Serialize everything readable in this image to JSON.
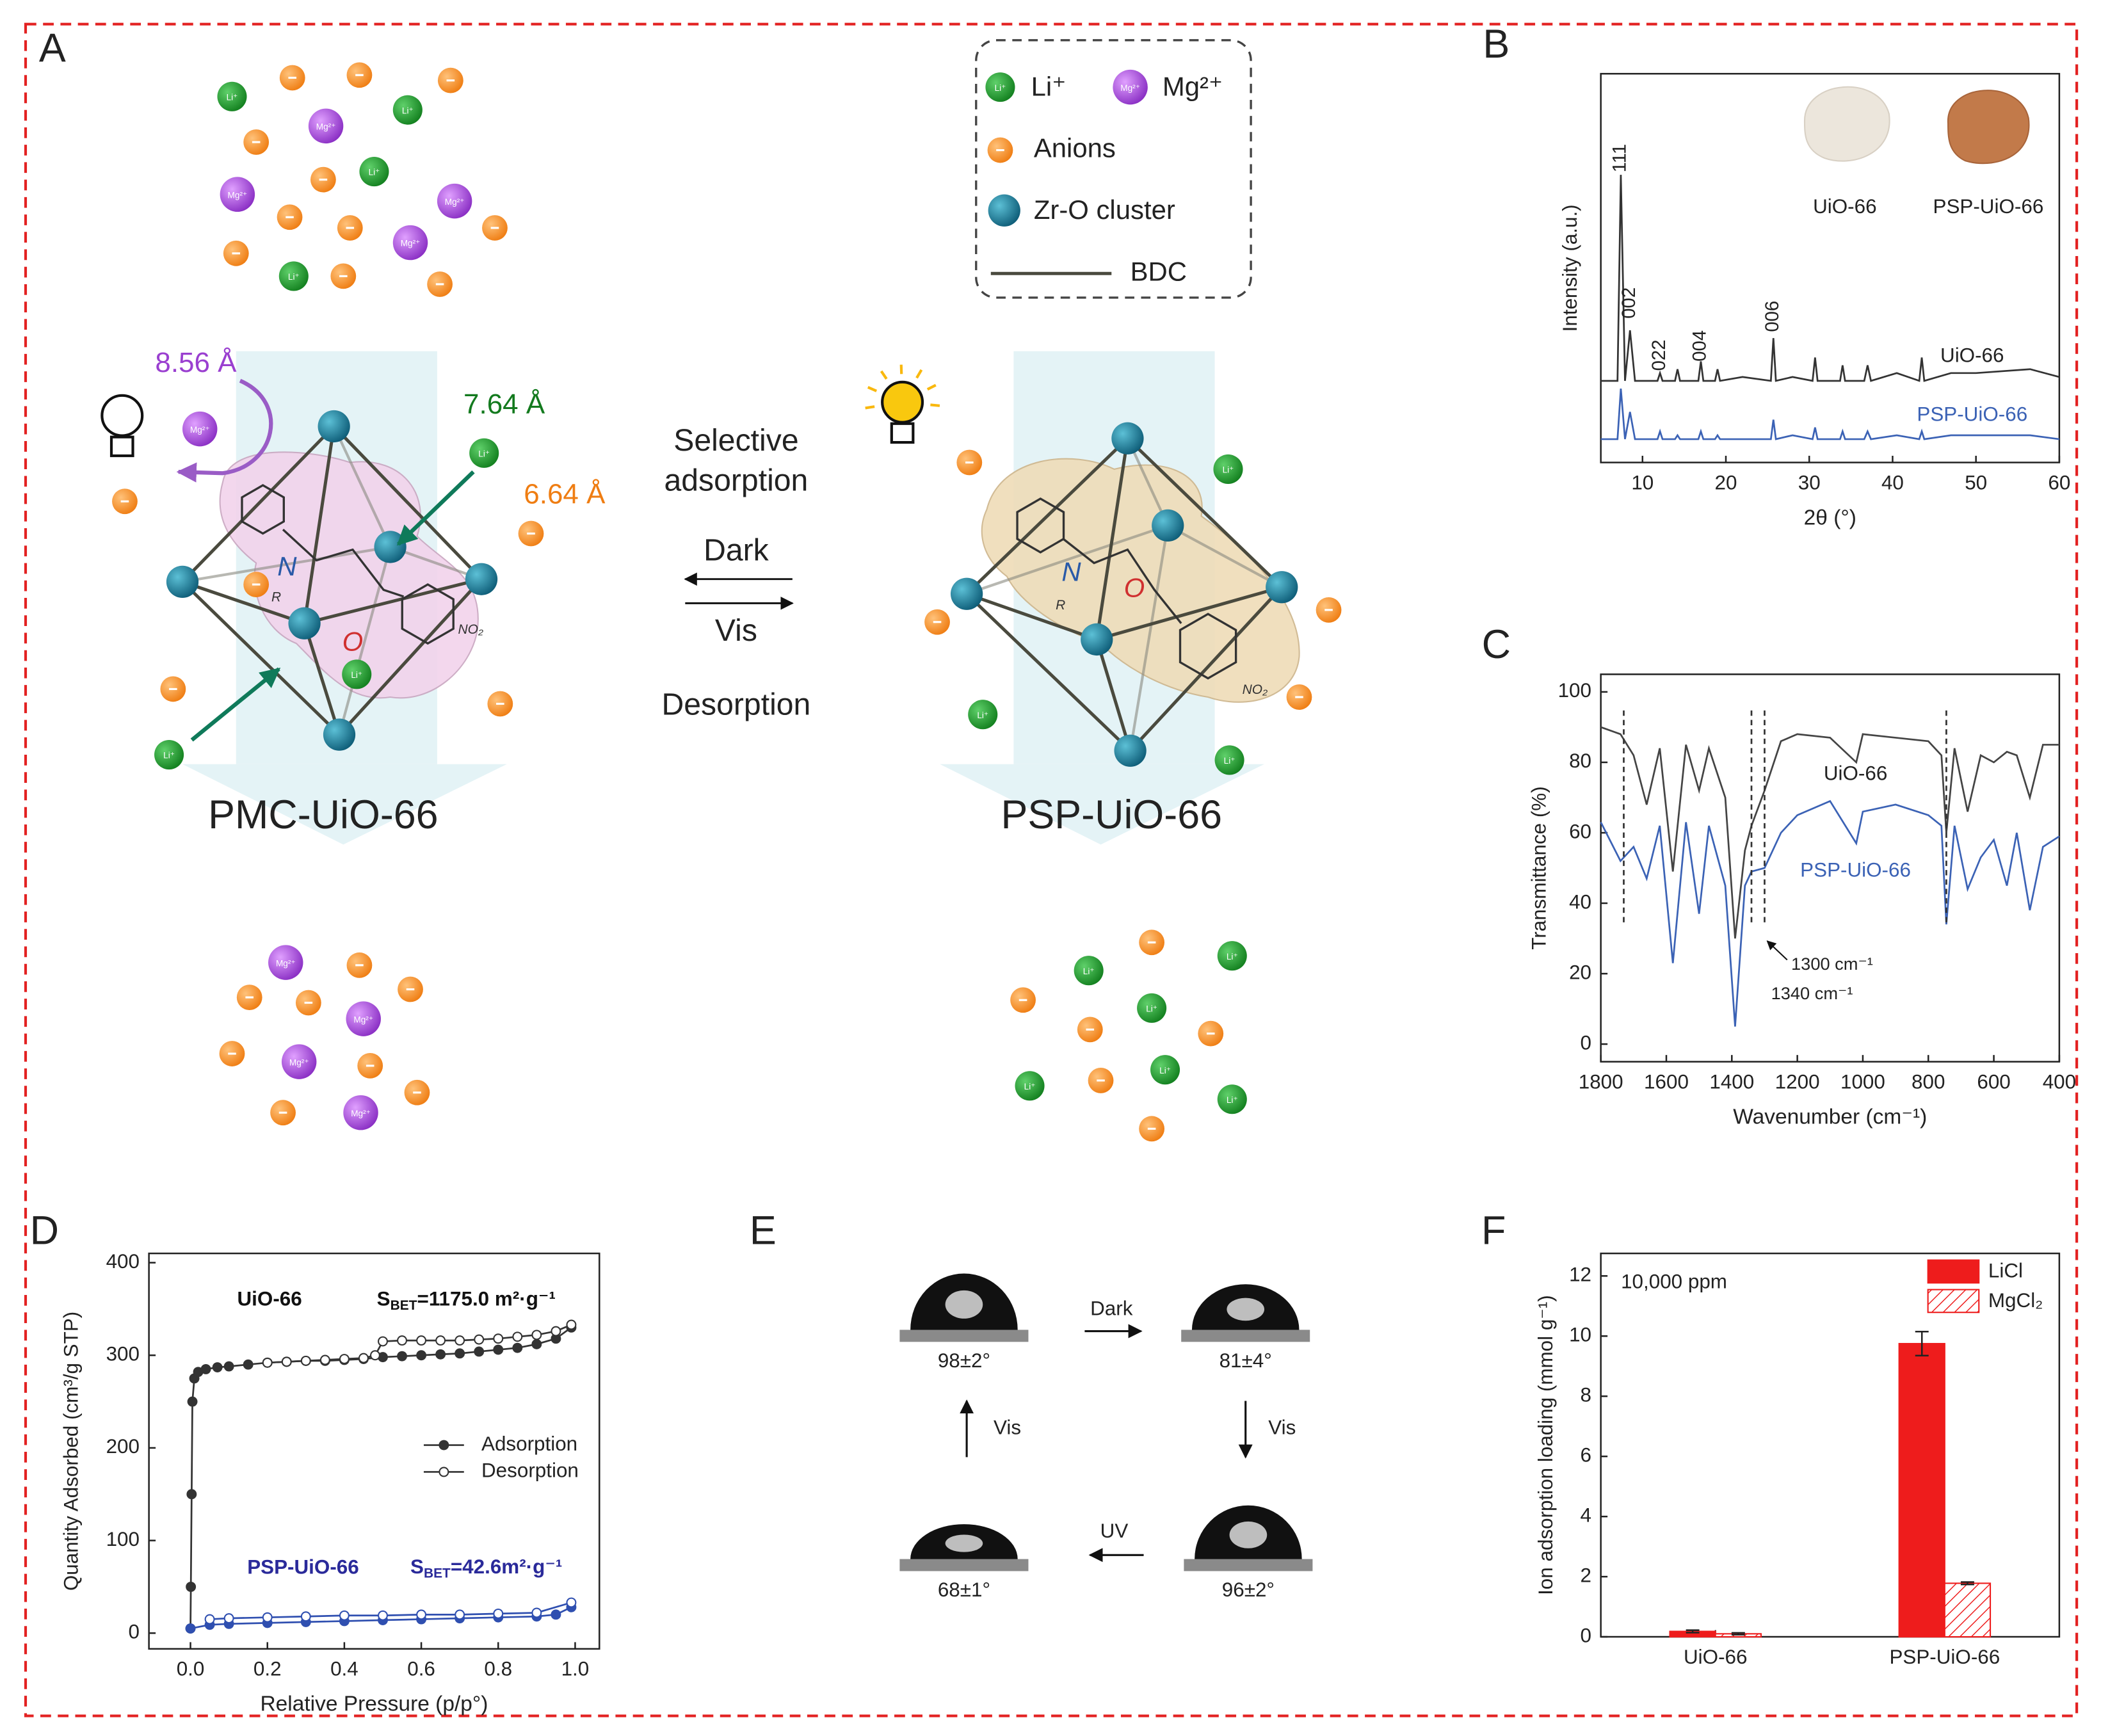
{
  "panel_labels": [
    "A",
    "B",
    "C",
    "D",
    "E",
    "F"
  ],
  "panel_a": {
    "legend": [
      "Li⁺",
      "Mg²⁺",
      "Anions",
      "Zr-O cluster",
      "BDC"
    ],
    "distances": [
      "8.56 Å",
      "7.64 Å",
      "6.64 Å"
    ],
    "adsorption_label": [
      "Selective",
      "adsorption"
    ],
    "dark": "Dark",
    "vis": "Vis",
    "desorption": "Desorption",
    "frameworks": [
      "PMC-UiO-66",
      "PSP-UiO-66"
    ],
    "molecule_labels": [
      "N",
      "R",
      "O",
      "NO₂"
    ]
  },
  "panel_e": {
    "angles": [
      "98±2°",
      "81±4°",
      "96±2°",
      "68±1°"
    ],
    "transitions": [
      "Dark",
      "Vis",
      "UV",
      "Vis"
    ]
  },
  "chart_data": [
    {
      "type": "line",
      "x_label": "2θ (°)",
      "y_label": "Intensity (a.u.)",
      "xlim": [
        5,
        60
      ],
      "xticks": [
        10,
        20,
        30,
        40,
        50,
        60
      ],
      "ylim": [
        0,
        100
      ],
      "x": [
        5,
        7,
        7.4,
        7.9,
        8.5,
        9.1,
        11.8,
        12.1,
        12.4,
        13.9,
        14.2,
        14.5,
        16.7,
        17,
        17.3,
        18.7,
        19,
        19.3,
        22,
        25.4,
        25.7,
        26,
        28,
        30.4,
        30.7,
        31,
        33.7,
        34,
        34.3,
        36.6,
        37,
        37.4,
        40.5,
        43.2,
        43.5,
        43.8,
        47,
        50,
        56.5,
        60
      ],
      "series": [
        {
          "name": "UiO-66",
          "color": "#333333",
          "values": [
            21,
            21,
            74,
            21,
            34,
            21,
            21,
            23,
            21,
            21,
            24,
            21,
            21,
            26,
            21,
            21,
            24,
            21,
            22,
            21,
            32,
            21,
            22,
            21,
            27,
            21,
            21,
            25,
            21,
            21,
            25,
            21,
            23,
            21,
            27,
            21,
            23,
            23,
            24,
            22
          ]
        },
        {
          "name": "PSP-UiO-66",
          "color": "#3b62b5",
          "values": [
            6,
            6,
            19,
            6,
            13,
            6,
            6,
            8,
            6,
            6,
            7,
            6,
            6,
            8,
            6,
            6,
            7,
            6,
            6,
            6,
            11,
            6,
            7,
            6,
            9,
            6,
            6,
            8,
            6,
            6,
            8,
            6,
            7,
            6,
            8,
            6,
            7,
            7,
            7,
            6
          ]
        }
      ],
      "peak_labels": [
        "111",
        "002",
        "022",
        "004",
        "006"
      ]
    },
    {
      "type": "line",
      "x_label": "Wavenumber (cm⁻¹)",
      "y_label": "Transmittance (%)",
      "xlim": [
        1800,
        400
      ],
      "xticks": [
        1800,
        1600,
        1400,
        1200,
        1000,
        800,
        600,
        400
      ],
      "ylim": [
        -5,
        105
      ],
      "yticks": [
        0,
        20,
        40,
        60,
        80,
        100
      ],
      "x": [
        1800,
        1740,
        1700,
        1660,
        1620,
        1580,
        1540,
        1500,
        1470,
        1420,
        1390,
        1360,
        1340,
        1300,
        1250,
        1200,
        1100,
        1020,
        1000,
        900,
        800,
        760,
        745,
        720,
        680,
        640,
        600,
        560,
        530,
        490,
        450,
        400
      ],
      "series": [
        {
          "name": "UiO-66",
          "color": "#444444",
          "values": [
            90,
            88,
            82,
            68,
            84,
            49,
            85,
            72,
            84,
            70,
            30,
            55,
            62,
            72,
            86,
            88,
            87,
            80,
            88,
            87,
            86,
            82,
            60,
            84,
            66,
            82,
            80,
            83,
            82,
            70,
            85,
            85
          ]
        },
        {
          "name": "PSP-UiO-66",
          "color": "#3b62b5",
          "values": [
            63,
            52,
            56,
            47,
            62,
            23,
            63,
            37,
            62,
            45,
            5,
            45,
            49,
            50,
            60,
            65,
            69,
            57,
            66,
            68,
            65,
            62,
            34,
            62,
            44,
            53,
            58,
            45,
            60,
            38,
            56,
            59
          ]
        }
      ],
      "reference_lines": [
        1730,
        1340,
        1300,
        745
      ],
      "annotations": [
        "1300 cm⁻¹",
        "1340 cm⁻¹"
      ]
    },
    {
      "type": "line",
      "markers": true,
      "x_label": "Relative Pressure (p/p°)",
      "y_label": "Quantity Adsorbed (cm³/g STP)",
      "xlim": [
        -0.108,
        1.063
      ],
      "xticks": [
        {
          "value": 0,
          "label": "0.0"
        },
        0.2,
        0.4,
        0.6,
        0.8,
        {
          "value": 1,
          "label": "1.0"
        }
      ],
      "ylim": [
        -17,
        410
      ],
      "yticks": [
        0,
        100,
        200,
        300,
        400
      ],
      "series": [
        {
          "name": "Adsorption",
          "color": "#333333",
          "marker": "filled",
          "x": [
            0,
            0.001,
            0.003,
            0.005,
            0.01,
            0.02,
            0.04,
            0.07,
            0.1,
            0.15,
            0.2,
            0.25,
            0.3,
            0.35,
            0.4,
            0.45,
            0.5,
            0.55,
            0.6,
            0.65,
            0.7,
            0.75,
            0.8,
            0.85,
            0.9,
            0.95,
            0.99
          ],
          "values": [
            5,
            50,
            150,
            250,
            275,
            282,
            285,
            287,
            288,
            290,
            292,
            293,
            294,
            294,
            295,
            296,
            298,
            299,
            300,
            301,
            302,
            304,
            306,
            308,
            312,
            318,
            330
          ]
        },
        {
          "name": "Desorption",
          "color": "#333333",
          "marker": "open",
          "x": [
            0.99,
            0.95,
            0.9,
            0.85,
            0.8,
            0.75,
            0.7,
            0.65,
            0.6,
            0.55,
            0.5,
            0.48,
            0.45,
            0.4,
            0.35,
            0.3,
            0.25,
            0.2
          ],
          "values": [
            333,
            326,
            322,
            320,
            318,
            317,
            316,
            316,
            316,
            316,
            315,
            300,
            297,
            296,
            295,
            294,
            293,
            292
          ]
        },
        {
          "name": "Adsorption",
          "color": "#2f4fb0",
          "marker": "filled",
          "x": [
            0,
            0.05,
            0.1,
            0.2,
            0.3,
            0.4,
            0.5,
            0.6,
            0.7,
            0.8,
            0.9,
            0.95,
            0.99
          ],
          "values": [
            5,
            9,
            10,
            11,
            12,
            13,
            14,
            15,
            16,
            17,
            18,
            20,
            28
          ]
        },
        {
          "name": "Desorption",
          "color": "#2f4fb0",
          "marker": "open",
          "x": [
            0.99,
            0.9,
            0.8,
            0.7,
            0.6,
            0.5,
            0.4,
            0.3,
            0.2,
            0.1,
            0.05
          ],
          "values": [
            33,
            22,
            21,
            20,
            20,
            19,
            19,
            18,
            17,
            16,
            15
          ]
        }
      ],
      "samples": [
        {
          "name": "UiO-66",
          "symbol": "S",
          "subscript": "BET",
          "value": "=1175.0 m²·g⁻¹"
        },
        {
          "name": "PSP-UiO-66",
          "symbol": "S",
          "subscript": "BET",
          "value": "=42.6m²·g⁻¹"
        }
      ]
    },
    {
      "type": "bar",
      "y_label": "Ion adsorption loading (mmol g⁻¹)",
      "categories": [
        "UiO-66",
        "PSP-UiO-66"
      ],
      "ylim": [
        0,
        12.75
      ],
      "yticks": [
        0,
        2,
        4,
        6,
        8,
        10,
        12
      ],
      "series": [
        {
          "name": "LiCl",
          "color": "#ee1c1c",
          "values": [
            0.18,
            9.75
          ],
          "errors": [
            0.04,
            0.4
          ]
        },
        {
          "name": "MgCl₂",
          "color": "#ee1c1c",
          "pattern": "hatch",
          "values": [
            0.1,
            1.78
          ],
          "errors": [
            0.03,
            0.04
          ]
        }
      ],
      "annotation": "10,000 ppm"
    }
  ]
}
